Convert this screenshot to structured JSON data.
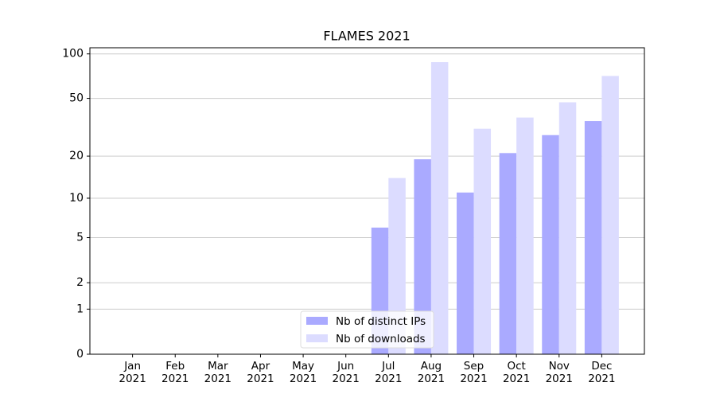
{
  "chart_data": {
    "type": "bar",
    "title": "FLAMES 2021",
    "categories": [
      "Jan\n2021",
      "Feb\n2021",
      "Mar\n2021",
      "Apr\n2021",
      "May\n2021",
      "Jun\n2021",
      "Jul\n2021",
      "Aug\n2021",
      "Sep\n2021",
      "Oct\n2021",
      "Nov\n2021",
      "Dec\n2021"
    ],
    "series": [
      {
        "name": "Nb of distinct IPs",
        "color": "#aaaaff",
        "values": [
          0,
          0,
          0,
          0,
          0,
          0,
          6,
          19,
          11,
          21,
          28,
          35
        ]
      },
      {
        "name": "Nb of downloads",
        "color": "#dcdcff",
        "values": [
          0,
          0,
          0,
          0,
          0,
          0,
          14,
          88,
          31,
          37,
          47,
          71
        ]
      }
    ],
    "yscale": "log1p",
    "ylim": [
      0,
      110
    ],
    "yticks": [
      0,
      1,
      2,
      5,
      10,
      20,
      50,
      100
    ],
    "grid": true,
    "legend": "lower center"
  }
}
